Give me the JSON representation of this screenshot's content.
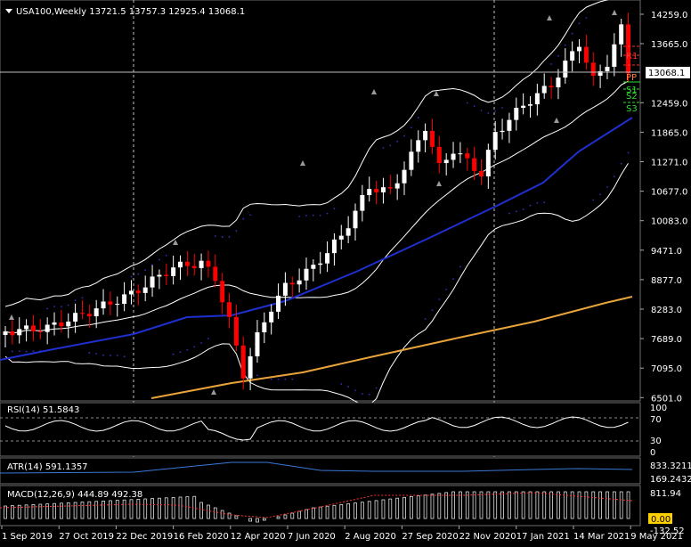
{
  "symbol_header": "USA100,Weekly  13721.5 13757.3 12925.4 13068.1",
  "current_price_label": "13068.1",
  "price_axis": [
    "14259.0",
    "13665.0",
    "13068.1",
    "12459.0",
    "11865.0",
    "11271.0",
    "10677.0",
    "10083.0",
    "9471.0",
    "8877.0",
    "8283.0",
    "7689.0",
    "7095.0",
    "6501.0"
  ],
  "pivot_labels": [
    "R1",
    "PP",
    "S1",
    "S2",
    "S3"
  ],
  "time_axis": [
    "1 Sep 2019",
    "27 Oct 2019",
    "22 Dec 2019",
    "16 Feb 2020",
    "12 Apr 2020",
    "7 Jun 2020",
    "2 Aug 2020",
    "27 Sep 2020",
    "22 Nov 2020",
    "17 Jan 2021",
    "14 Mar 2021",
    "9 May 2021"
  ],
  "rsi": {
    "label": "RSI(14) 51.5843",
    "levels": [
      "100",
      "70",
      "30",
      "0"
    ]
  },
  "atr": {
    "label": "ATR(14) 591.1357",
    "levels": [
      "833.3211",
      "169.2432"
    ]
  },
  "macd": {
    "label": "MACD(12,26,9) 444.89 492.38",
    "levels": [
      "811.94",
      "0.00",
      "-132.52"
    ]
  },
  "colors": {
    "background": "#000000",
    "grid": "#c0c0c0",
    "bull_candle": "#ffffff",
    "bear_candle": "#ff0000",
    "ma_fast": "#1f2fd0",
    "ma_slow": "#e8a33a",
    "bollinger": "#ffffff",
    "parabolic_sar": "#3030c0",
    "atr_line": "#3a78d8",
    "macd_signal": "#ff3333",
    "pivot_resistance": "#ff3030",
    "pivot_support": "#33dd33",
    "price_tag_bg": "#ffffff",
    "macd_zero_tag": "#ffd000"
  }
}
